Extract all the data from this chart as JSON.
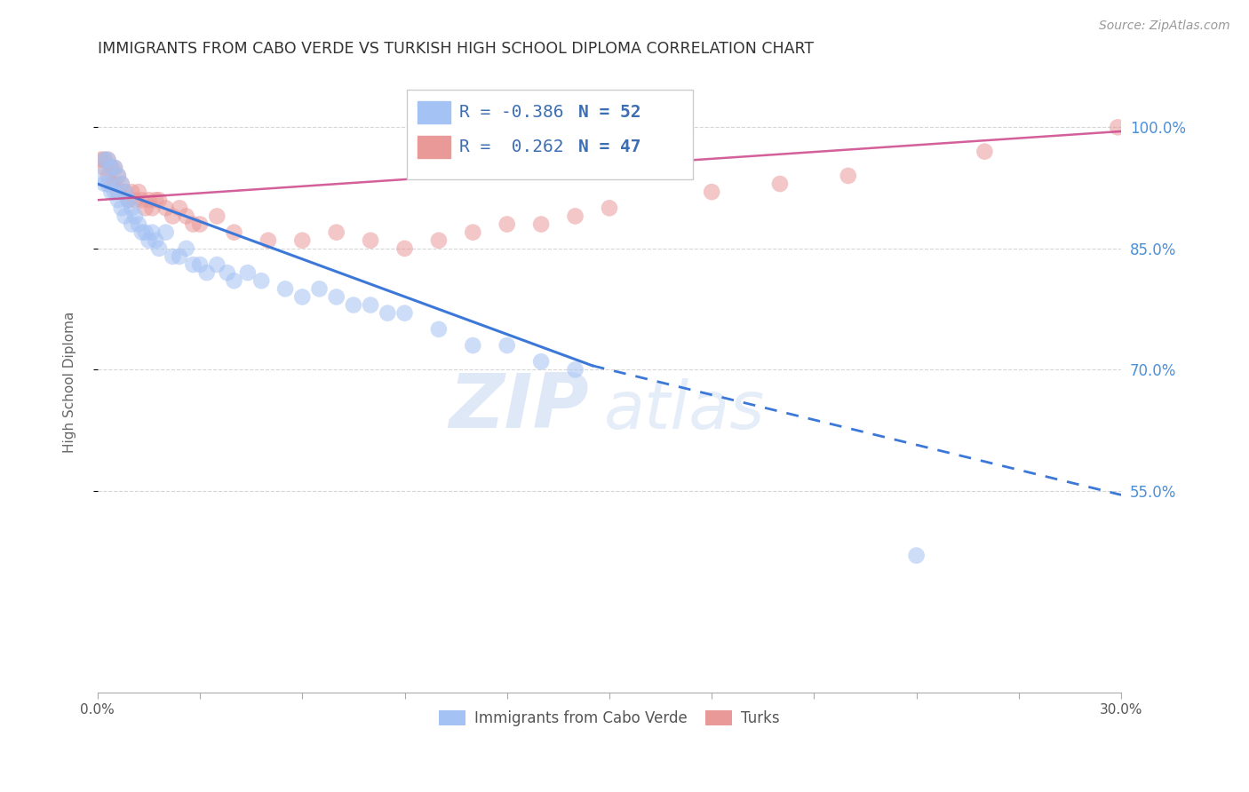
{
  "title": "IMMIGRANTS FROM CABO VERDE VS TURKISH HIGH SCHOOL DIPLOMA CORRELATION CHART",
  "source": "Source: ZipAtlas.com",
  "ylabel": "High School Diploma",
  "xmin": 0.0,
  "xmax": 0.3,
  "ymin": 0.3,
  "ymax": 1.07,
  "ytick_labels": [
    "100.0%",
    "85.0%",
    "70.0%",
    "55.0%"
  ],
  "ytick_values": [
    1.0,
    0.85,
    0.7,
    0.55
  ],
  "xtick_labels": [
    "0.0%",
    "",
    "",
    "",
    "",
    "",
    "",
    "",
    "",
    "",
    "30.0%"
  ],
  "xtick_values": [
    0.0,
    0.03,
    0.06,
    0.09,
    0.12,
    0.15,
    0.18,
    0.21,
    0.24,
    0.27,
    0.3
  ],
  "legend_r_cabo": "-0.386",
  "legend_n_cabo": "52",
  "legend_r_turk": " 0.262",
  "legend_n_turk": "47",
  "blue_color": "#a4c2f4",
  "pink_color": "#ea9999",
  "blue_line_color": "#3c78d8",
  "pink_line_color": "#cc4488",
  "cabo_scatter_x": [
    0.001,
    0.002,
    0.002,
    0.003,
    0.003,
    0.004,
    0.004,
    0.005,
    0.005,
    0.006,
    0.006,
    0.007,
    0.007,
    0.008,
    0.008,
    0.009,
    0.01,
    0.01,
    0.011,
    0.012,
    0.013,
    0.014,
    0.015,
    0.016,
    0.017,
    0.018,
    0.02,
    0.022,
    0.024,
    0.026,
    0.028,
    0.03,
    0.032,
    0.035,
    0.038,
    0.04,
    0.044,
    0.048,
    0.055,
    0.06,
    0.065,
    0.07,
    0.075,
    0.08,
    0.085,
    0.09,
    0.1,
    0.11,
    0.12,
    0.13,
    0.14,
    0.24
  ],
  "cabo_scatter_y": [
    0.94,
    0.96,
    0.93,
    0.96,
    0.93,
    0.95,
    0.92,
    0.95,
    0.92,
    0.94,
    0.91,
    0.93,
    0.9,
    0.92,
    0.89,
    0.91,
    0.9,
    0.88,
    0.89,
    0.88,
    0.87,
    0.87,
    0.86,
    0.87,
    0.86,
    0.85,
    0.87,
    0.84,
    0.84,
    0.85,
    0.83,
    0.83,
    0.82,
    0.83,
    0.82,
    0.81,
    0.82,
    0.81,
    0.8,
    0.79,
    0.8,
    0.79,
    0.78,
    0.78,
    0.77,
    0.77,
    0.75,
    0.73,
    0.73,
    0.71,
    0.7,
    0.47
  ],
  "turk_scatter_x": [
    0.001,
    0.002,
    0.002,
    0.003,
    0.003,
    0.004,
    0.004,
    0.005,
    0.005,
    0.006,
    0.006,
    0.007,
    0.008,
    0.009,
    0.01,
    0.011,
    0.012,
    0.013,
    0.014,
    0.015,
    0.016,
    0.017,
    0.018,
    0.02,
    0.022,
    0.024,
    0.026,
    0.028,
    0.03,
    0.035,
    0.04,
    0.05,
    0.06,
    0.07,
    0.08,
    0.09,
    0.1,
    0.11,
    0.12,
    0.13,
    0.14,
    0.15,
    0.18,
    0.2,
    0.22,
    0.26,
    0.299
  ],
  "turk_scatter_y": [
    0.96,
    0.96,
    0.95,
    0.96,
    0.94,
    0.95,
    0.93,
    0.95,
    0.93,
    0.94,
    0.92,
    0.93,
    0.92,
    0.91,
    0.92,
    0.91,
    0.92,
    0.91,
    0.9,
    0.91,
    0.9,
    0.91,
    0.91,
    0.9,
    0.89,
    0.9,
    0.89,
    0.88,
    0.88,
    0.89,
    0.87,
    0.86,
    0.86,
    0.87,
    0.86,
    0.85,
    0.86,
    0.87,
    0.88,
    0.88,
    0.89,
    0.9,
    0.92,
    0.93,
    0.94,
    0.97,
    1.0
  ],
  "cabo_line_x0": 0.0,
  "cabo_line_x_break": 0.145,
  "cabo_line_x1": 0.3,
  "cabo_line_y0": 0.93,
  "cabo_line_y_break": 0.705,
  "cabo_line_y1": 0.545,
  "turk_line_x0": 0.0,
  "turk_line_x1": 0.3,
  "turk_line_y0": 0.91,
  "turk_line_y1": 0.995,
  "watermark_zip": "ZIP",
  "watermark_atlas": "atlas",
  "background_color": "#ffffff",
  "grid_color": "#cccccc"
}
